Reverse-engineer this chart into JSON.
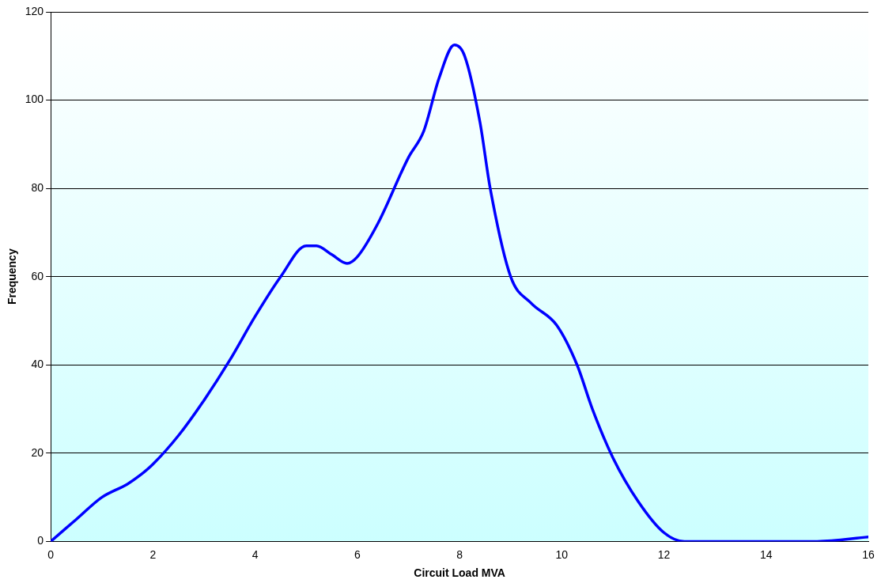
{
  "chart_data": {
    "type": "line",
    "xlabel": "Circuit Load MVA",
    "ylabel": "Frequency",
    "x": [
      0,
      0.5,
      1,
      1.5,
      1.75,
      2,
      2.5,
      3,
      3.5,
      4,
      4.5,
      5,
      5.2,
      5.5,
      5.8,
      6,
      6.4,
      7,
      7.3,
      7.6,
      7.9,
      8.1,
      8.4,
      8.6,
      9,
      9.4,
      9.9,
      10.3,
      10.6,
      11,
      11.5,
      12,
      12.4,
      13,
      14,
      15,
      16
    ],
    "series": [
      {
        "color": "#0000ff",
        "values": [
          0,
          5,
          10,
          13,
          15,
          17.5,
          24,
          32,
          41,
          51,
          60,
          67,
          67,
          65,
          63,
          64.5,
          72,
          87,
          93,
          105,
          112.5,
          110,
          95,
          80,
          60,
          54,
          49,
          40,
          30,
          19,
          9,
          2,
          0,
          0,
          0,
          0,
          1
        ]
      }
    ],
    "xlim": [
      0,
      16
    ],
    "xticks": [
      0,
      2,
      4,
      6,
      8,
      10,
      12,
      14,
      16
    ],
    "ylim": [
      0,
      120
    ],
    "yticks": [
      0,
      20,
      40,
      60,
      80,
      100,
      120
    ],
    "grid": "y",
    "legend": false,
    "marker": "none",
    "line_style": "solid"
  }
}
